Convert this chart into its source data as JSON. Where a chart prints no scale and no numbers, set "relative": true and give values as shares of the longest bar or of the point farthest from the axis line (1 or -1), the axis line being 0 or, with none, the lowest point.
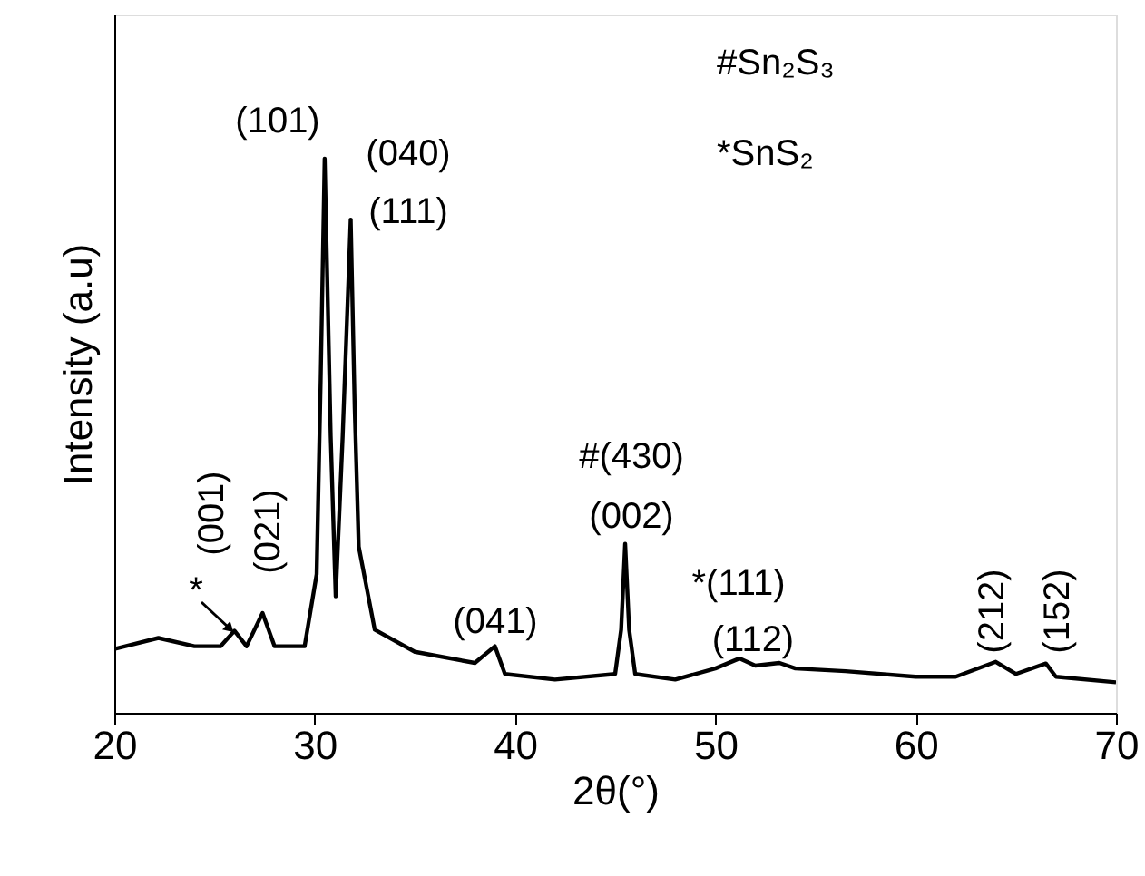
{
  "chart_data": {
    "type": "line",
    "xlabel": "2θ(°)",
    "ylabel": "Intensity (a.u)",
    "relative": true,
    "x": [
      20,
      22.2,
      24,
      25.3,
      26.0,
      26.6,
      27.4,
      28.0,
      29.5,
      30.1,
      30.3,
      30.5,
      30.8,
      31.05,
      31.4,
      31.8,
      32.0,
      32.2,
      33,
      35,
      38,
      39.0,
      39.5,
      42,
      45,
      45.3,
      45.5,
      45.7,
      46,
      48,
      50,
      51.2,
      52,
      53.2,
      54,
      56.5,
      60,
      62,
      64.0,
      65,
      66.5,
      67,
      70
    ],
    "xlim": [
      20,
      70
    ],
    "xticks": [
      20,
      30,
      40,
      50,
      60,
      70
    ],
    "series": [
      {
        "color": "#000000",
        "values": [
          0.115,
          0.135,
          0.12,
          0.12,
          0.148,
          0.12,
          0.18,
          0.12,
          0.12,
          0.25,
          0.6,
          1.0,
          0.5,
          0.21,
          0.5,
          0.89,
          0.55,
          0.3,
          0.15,
          0.11,
          0.09,
          0.12,
          0.07,
          0.06,
          0.07,
          0.15,
          0.305,
          0.15,
          0.07,
          0.06,
          0.08,
          0.098,
          0.085,
          0.09,
          0.08,
          0.075,
          0.065,
          0.065,
          0.092,
          0.07,
          0.089,
          0.065,
          0.055
        ]
      }
    ],
    "annotations": [
      "(101)",
      "(040)",
      "(111)",
      "*",
      "(001)",
      "(021)",
      "(041)",
      "#(430)",
      "(002)",
      "*(111)",
      "(112)",
      "(212)",
      "(152)",
      "#Sn₂S₃",
      "*SnS₂"
    ],
    "grid": false,
    "marker": "none",
    "line_style": "solid"
  }
}
